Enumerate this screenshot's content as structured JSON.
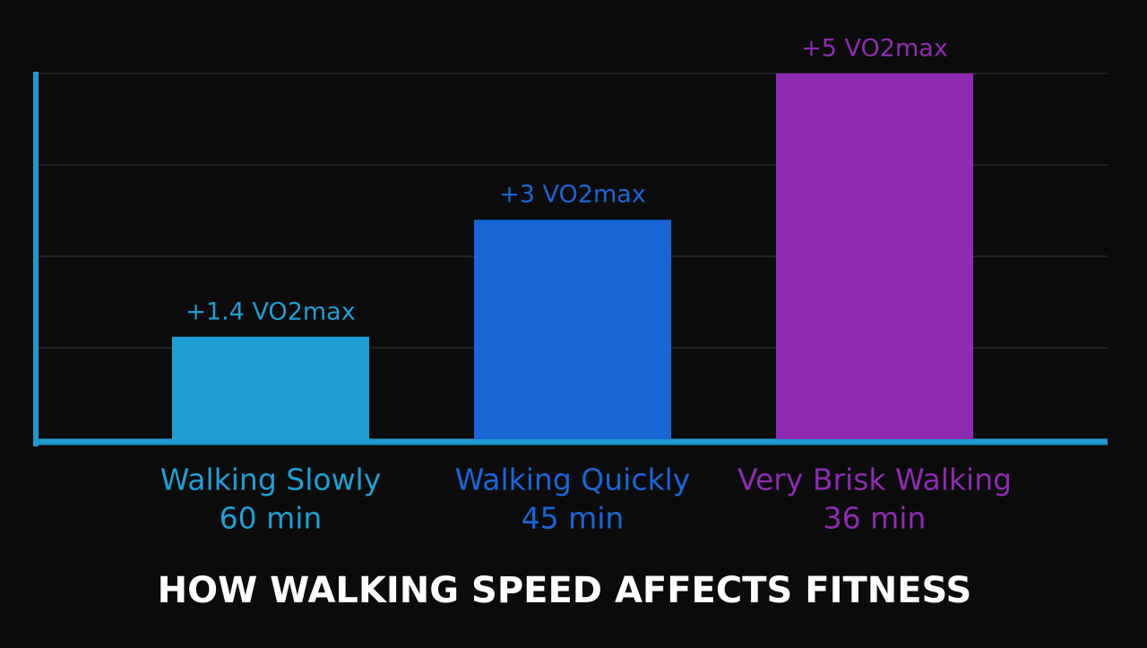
{
  "chart_data": {
    "type": "bar",
    "title": "HOW WALKING SPEED AFFECTS FITNESS",
    "categories": [
      "Walking Slowly",
      "Walking Quickly",
      "Very Brisk Walking"
    ],
    "durations": [
      "60 min",
      "45 min",
      "36 min"
    ],
    "values": [
      1.4,
      3,
      5
    ],
    "value_labels": [
      "+1.4 VO2max",
      "+3 VO2max",
      "+5 VO2max"
    ],
    "colors": [
      "#1e9fd4",
      "#1a66d6",
      "#8e2bb2"
    ],
    "axis_color": "#1e98cf",
    "ylim": [
      0,
      5
    ],
    "yticks": [
      0,
      1.25,
      2.5,
      3.75,
      5
    ],
    "grid": true
  }
}
